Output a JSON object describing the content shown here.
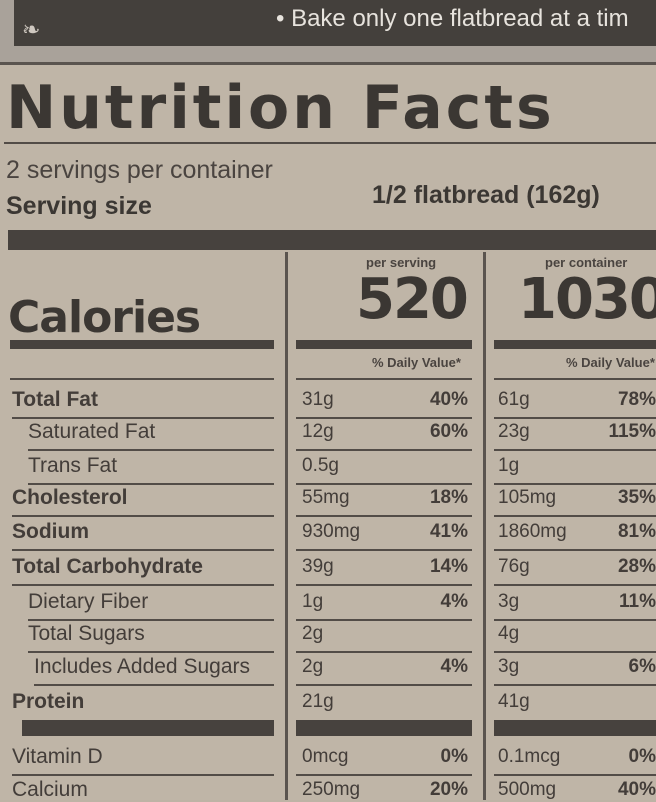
{
  "banner": {
    "text": "• Bake only one flatbread at a tim"
  },
  "label": {
    "title": "Nutrition Facts",
    "servings_per_container": "2 servings per container",
    "serving_size_label": "Serving size",
    "serving_size_value": "1/2 flatbread (162g)",
    "calories_label": "Calories",
    "per_serving_label": "per serving",
    "per_container_label": "per container",
    "calories_per_serving": "520",
    "calories_per_container": "1030",
    "dv_header_serving": "% Daily Value*",
    "dv_header_container": "% Daily Value*",
    "rows": [
      {
        "name": "Total Fat",
        "bold": true,
        "indent": 0,
        "s_amt": "31g",
        "s_dv": "40%",
        "c_amt": "61g",
        "c_dv": "78%"
      },
      {
        "name": "Saturated Fat",
        "bold": false,
        "indent": 1,
        "s_amt": "12g",
        "s_dv": "60%",
        "c_amt": "23g",
        "c_dv": "115%"
      },
      {
        "name": "Trans Fat",
        "bold": false,
        "indent": 1,
        "s_amt": "0.5g",
        "s_dv": "",
        "c_amt": "1g",
        "c_dv": ""
      },
      {
        "name": "Cholesterol",
        "bold": true,
        "indent": 0,
        "s_amt": "55mg",
        "s_dv": "18%",
        "c_amt": "105mg",
        "c_dv": "35%"
      },
      {
        "name": "Sodium",
        "bold": true,
        "indent": 0,
        "s_amt": "930mg",
        "s_dv": "41%",
        "c_amt": "1860mg",
        "c_dv": "81%"
      },
      {
        "name": "Total Carbohydrate",
        "bold": true,
        "indent": 0,
        "s_amt": "39g",
        "s_dv": "14%",
        "c_amt": "76g",
        "c_dv": "28%"
      },
      {
        "name": "Dietary Fiber",
        "bold": false,
        "indent": 1,
        "s_amt": "1g",
        "s_dv": "4%",
        "c_amt": "3g",
        "c_dv": "11%"
      },
      {
        "name": "Total Sugars",
        "bold": false,
        "indent": 1,
        "s_amt": "2g",
        "s_dv": "",
        "c_amt": "4g",
        "c_dv": ""
      },
      {
        "name": "Includes Added Sugars",
        "bold": false,
        "indent": 2,
        "s_amt": "2g",
        "s_dv": "4%",
        "c_amt": "3g",
        "c_dv": "6%"
      },
      {
        "name": "Protein",
        "bold": true,
        "indent": 0,
        "s_amt": "21g",
        "s_dv": "",
        "c_amt": "41g",
        "c_dv": ""
      },
      {
        "name": "Vitamin D",
        "bold": false,
        "indent": 0,
        "s_amt": "0mcg",
        "s_dv": "0%",
        "c_amt": "0.1mcg",
        "c_dv": "0%"
      },
      {
        "name": "Calcium",
        "bold": false,
        "indent": 0,
        "s_amt": "250mg",
        "s_dv": "20%",
        "c_amt": "500mg",
        "c_dv": "40%"
      }
    ]
  }
}
